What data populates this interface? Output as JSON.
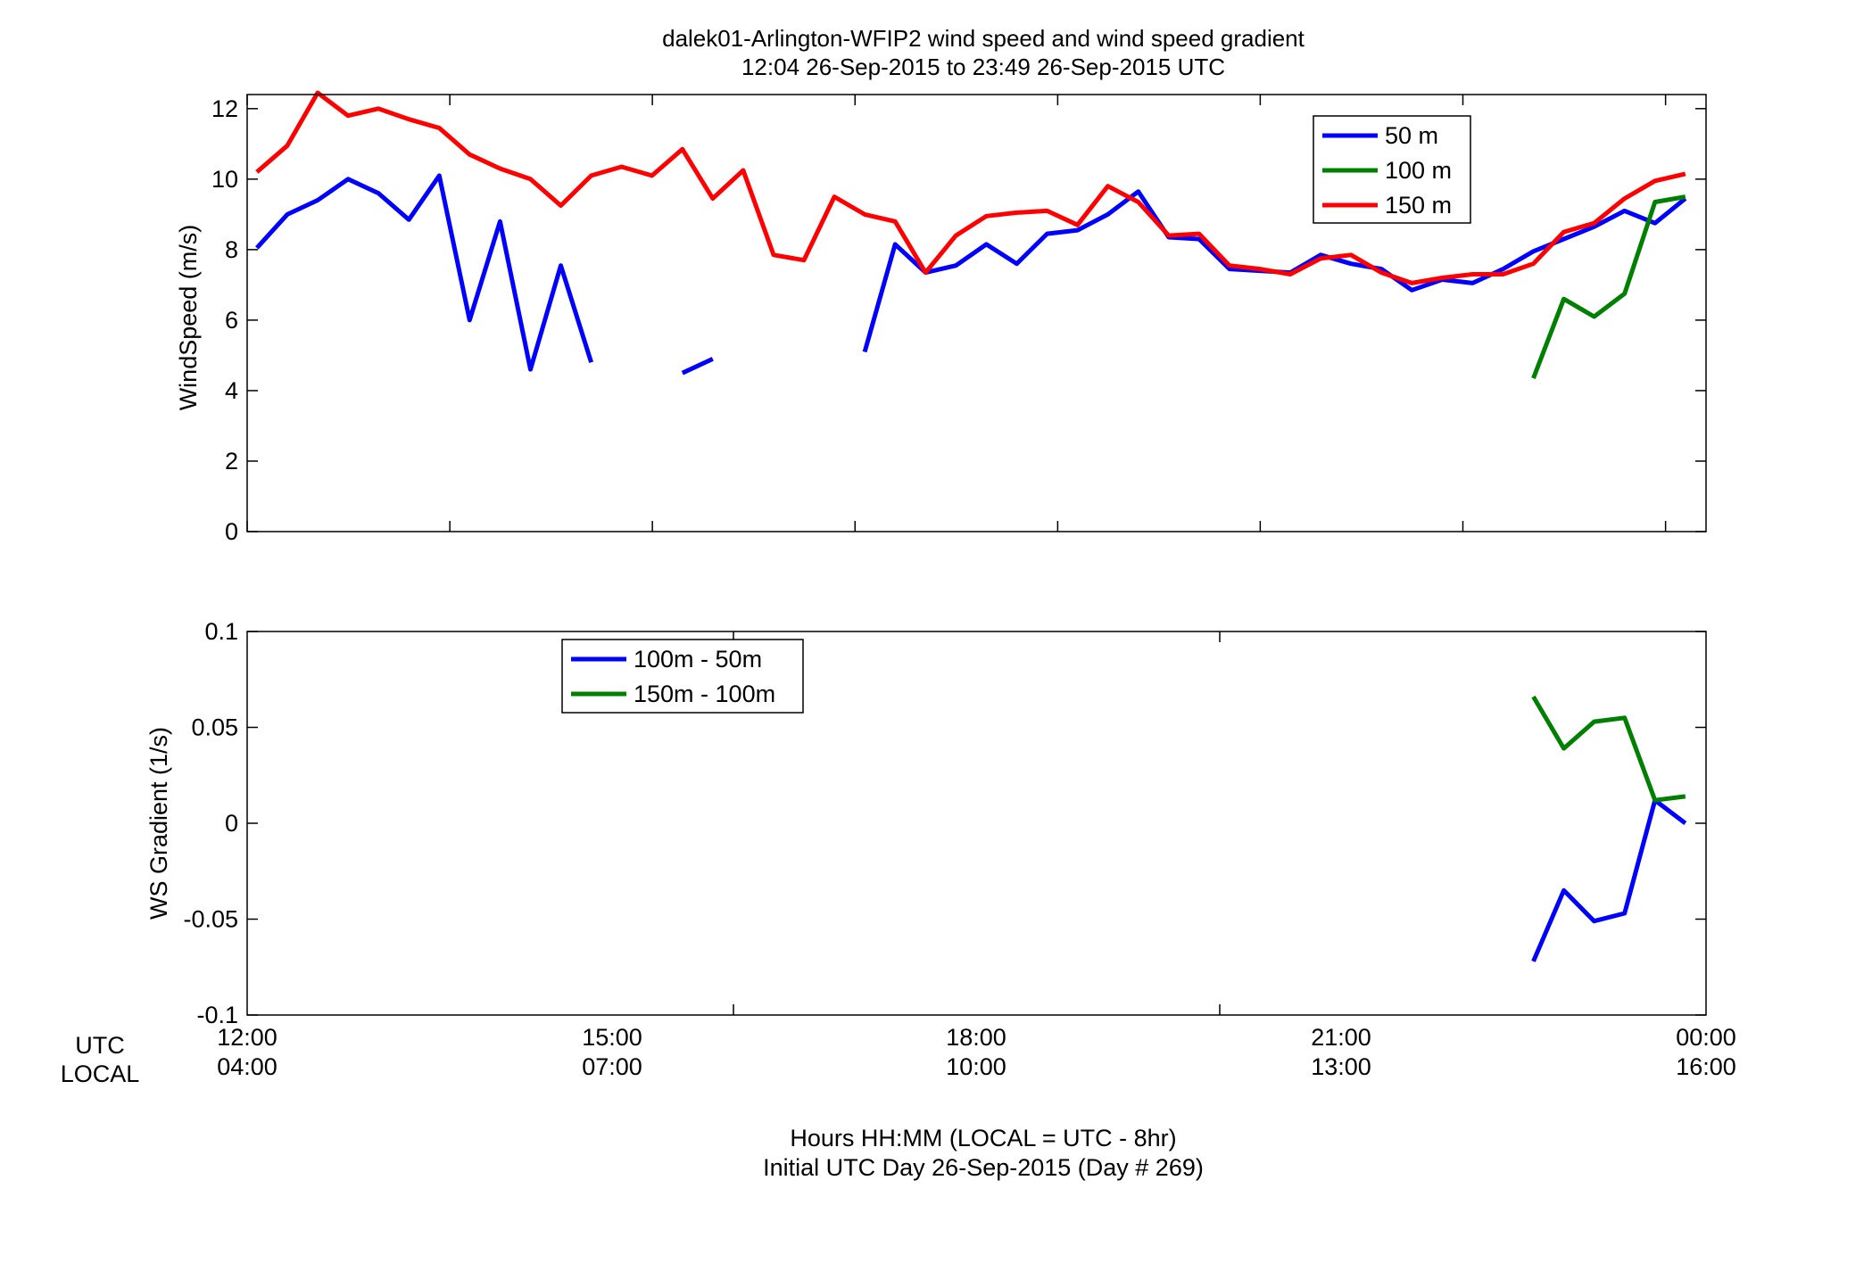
{
  "figure": {
    "title_line1": "dalek01-Arlington-WFIP2  wind speed and wind speed gradient",
    "title_line2": "12:04 26-Sep-2015 to 23:49 26-Sep-2015  UTC",
    "xlabel_line1": "Hours HH:MM  (LOCAL = UTC - 8hr)",
    "xlabel_line2": "Initial UTC Day 26-Sep-2015 (Day # 269)",
    "row_label_utc": "UTC",
    "row_label_local": "LOCAL",
    "utc_ticks": [
      "12:00",
      "15:00",
      "18:00",
      "21:00",
      "00:00"
    ],
    "local_ticks": [
      "04:00",
      "07:00",
      "10:00",
      "13:00",
      "16:00"
    ]
  },
  "chart_data": [
    {
      "type": "line",
      "ylabel": "WindSpeed (m/s)",
      "xlim": [
        12,
        24
      ],
      "ylim": [
        0,
        12.4
      ],
      "yticks": [
        0,
        2,
        4,
        6,
        8,
        10,
        12
      ],
      "yticklabels": [
        "0",
        "2",
        "4",
        "6",
        "8",
        "10",
        "12"
      ],
      "legend_position": "top-right",
      "series": [
        {
          "name": "50 m",
          "color": "#0000ff",
          "points": [
            [
              12.08,
              8.05
            ],
            [
              12.33,
              9.0
            ],
            [
              12.58,
              9.4
            ],
            [
              12.83,
              10.0
            ],
            [
              13.08,
              9.6
            ],
            [
              13.33,
              8.85
            ],
            [
              13.58,
              10.1
            ],
            [
              13.83,
              6.0
            ],
            [
              14.08,
              8.8
            ],
            [
              14.33,
              4.6
            ],
            [
              14.58,
              7.55
            ],
            [
              14.83,
              4.8
            ],
            null,
            [
              15.58,
              4.5
            ],
            [
              15.83,
              4.9
            ],
            null,
            [
              17.08,
              5.1
            ],
            [
              17.33,
              8.15
            ],
            [
              17.58,
              7.35
            ],
            [
              17.83,
              7.55
            ],
            [
              18.08,
              8.15
            ],
            [
              18.33,
              7.6
            ],
            [
              18.58,
              8.45
            ],
            [
              18.83,
              8.55
            ],
            [
              19.08,
              9.0
            ],
            [
              19.33,
              9.65
            ],
            [
              19.58,
              8.35
            ],
            [
              19.83,
              8.3
            ],
            [
              20.08,
              7.45
            ],
            [
              20.33,
              7.4
            ],
            [
              20.58,
              7.35
            ],
            [
              20.83,
              7.85
            ],
            [
              21.08,
              7.6
            ],
            [
              21.33,
              7.45
            ],
            [
              21.58,
              6.85
            ],
            [
              21.83,
              7.15
            ],
            [
              22.08,
              7.05
            ],
            [
              22.33,
              7.45
            ],
            [
              22.58,
              7.95
            ],
            [
              22.83,
              8.3
            ],
            [
              23.08,
              8.65
            ],
            [
              23.33,
              9.1
            ],
            [
              23.58,
              8.75
            ],
            [
              23.83,
              9.45
            ]
          ]
        },
        {
          "name": "100 m",
          "color": "#008000",
          "points": [
            [
              22.58,
              4.35
            ],
            [
              22.83,
              6.6
            ],
            [
              23.08,
              6.1
            ],
            [
              23.33,
              6.75
            ],
            [
              23.58,
              9.35
            ],
            [
              23.83,
              9.5
            ]
          ]
        },
        {
          "name": "150 m",
          "color": "#ff0000",
          "points": [
            [
              12.08,
              10.2
            ],
            [
              12.33,
              10.95
            ],
            [
              12.58,
              12.45
            ],
            [
              12.83,
              11.8
            ],
            [
              13.08,
              12.0
            ],
            [
              13.33,
              11.7
            ],
            [
              13.58,
              11.45
            ],
            [
              13.83,
              10.7
            ],
            [
              14.08,
              10.3
            ],
            [
              14.33,
              10.0
            ],
            [
              14.58,
              9.25
            ],
            [
              14.83,
              10.1
            ],
            [
              15.08,
              10.35
            ],
            [
              15.33,
              10.1
            ],
            [
              15.58,
              10.85
            ],
            [
              15.83,
              9.45
            ],
            [
              16.08,
              10.25
            ],
            [
              16.33,
              7.85
            ],
            [
              16.58,
              7.7
            ],
            [
              16.83,
              9.5
            ],
            [
              17.08,
              9.0
            ],
            [
              17.33,
              8.8
            ],
            [
              17.58,
              7.35
            ],
            [
              17.83,
              8.4
            ],
            [
              18.08,
              8.95
            ],
            [
              18.33,
              9.05
            ],
            [
              18.58,
              9.1
            ],
            [
              18.83,
              8.7
            ],
            [
              19.08,
              9.8
            ],
            [
              19.33,
              9.35
            ],
            [
              19.58,
              8.4
            ],
            [
              19.83,
              8.45
            ],
            [
              20.08,
              7.55
            ],
            [
              20.33,
              7.45
            ],
            [
              20.58,
              7.3
            ],
            [
              20.83,
              7.75
            ],
            [
              21.08,
              7.85
            ],
            [
              21.33,
              7.35
            ],
            [
              21.58,
              7.05
            ],
            [
              21.83,
              7.2
            ],
            [
              22.08,
              7.3
            ],
            [
              22.33,
              7.3
            ],
            [
              22.58,
              7.6
            ],
            [
              22.83,
              8.5
            ],
            [
              23.08,
              8.75
            ],
            [
              23.33,
              9.45
            ],
            [
              23.58,
              9.95
            ],
            [
              23.83,
              10.15
            ]
          ]
        }
      ]
    },
    {
      "type": "line",
      "ylabel": "WS Gradient (1/s)",
      "xlim": [
        12,
        24
      ],
      "ylim": [
        -0.1,
        0.1
      ],
      "yticks": [
        -0.1,
        -0.05,
        0,
        0.05,
        0.1
      ],
      "yticklabels": [
        "-0.1",
        "-0.05",
        "0",
        "0.05",
        "0.1"
      ],
      "legend_position": "top-left",
      "series": [
        {
          "name": "100m - 50m",
          "color": "#0000ff",
          "points": [
            [
              22.58,
              -0.072
            ],
            [
              22.83,
              -0.035
            ],
            [
              23.08,
              -0.051
            ],
            [
              23.33,
              -0.047
            ],
            [
              23.58,
              0.012
            ],
            [
              23.83,
              0.0
            ]
          ]
        },
        {
          "name": "150m - 100m",
          "color": "#008000",
          "points": [
            [
              22.58,
              0.066
            ],
            [
              22.83,
              0.039
            ],
            [
              23.08,
              0.053
            ],
            [
              23.33,
              0.055
            ],
            [
              23.58,
              0.012
            ],
            [
              23.83,
              0.014
            ]
          ]
        }
      ]
    }
  ]
}
